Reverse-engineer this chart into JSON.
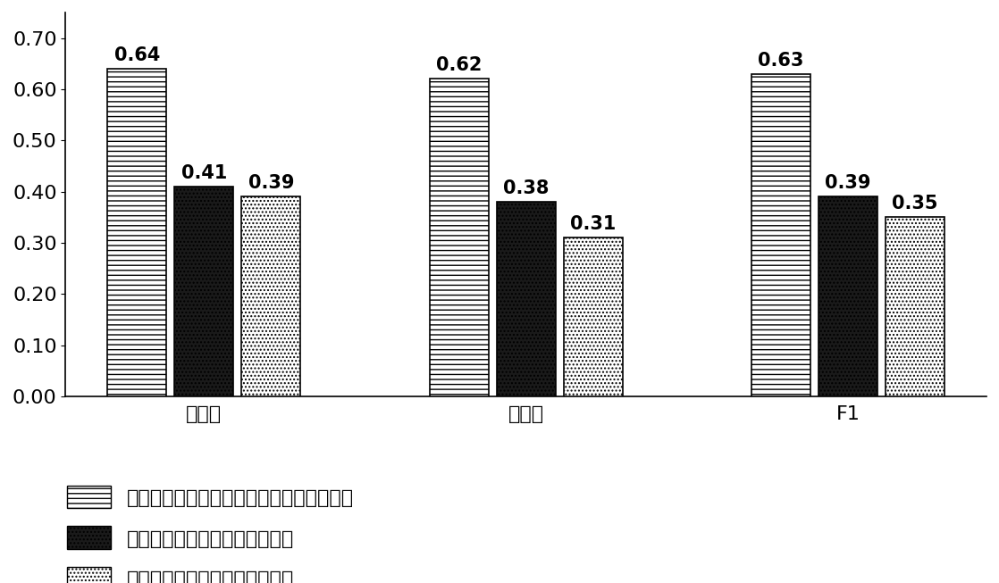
{
  "categories": [
    "精准率",
    "召回率",
    "F1"
  ],
  "series": [
    {
      "name": "基于局部属性和拓扑结构的相似度聚类结果",
      "values": [
        0.64,
        0.62,
        0.63
      ]
    },
    {
      "name": "基于局部属性相似度的聚类结果",
      "values": [
        0.41,
        0.38,
        0.39
      ]
    },
    {
      "name": "基于拓扑结构相似度的聚类结果",
      "values": [
        0.39,
        0.31,
        0.35
      ]
    }
  ],
  "ylim": [
    0,
    0.75
  ],
  "yticks": [
    0.0,
    0.1,
    0.2,
    0.3,
    0.4,
    0.5,
    0.6,
    0.7
  ],
  "bar_width": 0.22,
  "background_color": "#ffffff",
  "tick_fontsize": 16,
  "legend_fontsize": 16,
  "value_label_fontsize": 15
}
